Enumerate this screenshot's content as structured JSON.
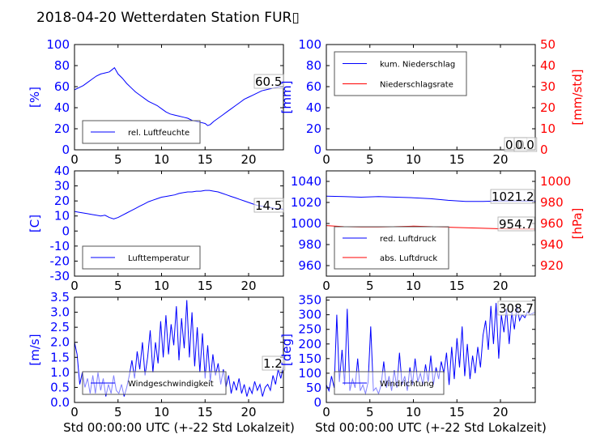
{
  "title": "2018-04-20 Wetterdaten Station FUR",
  "title_glyph": "▯",
  "colors": {
    "primary": "#0000ff",
    "secondary": "#ff0000",
    "axis": "#000000",
    "legend_border": "#555555"
  },
  "chart_data": [
    {
      "id": "humidity",
      "type": "line",
      "xlim": [
        0,
        24
      ],
      "xticks": [
        0,
        5,
        10,
        15,
        20
      ],
      "ylim": [
        0,
        100
      ],
      "yticks": [
        0,
        20,
        40,
        60,
        80,
        100
      ],
      "ylabel": "[%]",
      "xlabel": "",
      "current_value": "60.5",
      "legend": [
        {
          "name": "rel. Luftfeuchte",
          "color": "#0000ff"
        }
      ],
      "series": [
        {
          "name": "rel. Luftfeuchte",
          "color": "#0000ff",
          "axis": "left",
          "x": [
            0,
            0.5,
            1,
            1.5,
            2,
            2.5,
            3,
            3.5,
            4,
            4.3,
            4.6,
            5,
            5.5,
            6,
            6.5,
            7,
            7.5,
            8,
            8.5,
            9,
            9.5,
            10,
            10.5,
            11,
            11.5,
            12,
            12.5,
            13,
            13.5,
            14,
            14.5,
            15,
            15.3,
            15.6,
            16,
            16.5,
            17,
            17.5,
            18,
            18.5,
            19,
            19.5,
            20,
            20.5,
            21,
            21.5,
            22,
            22.5,
            23,
            23.5,
            24
          ],
          "y": [
            57,
            59,
            61,
            64,
            67,
            70,
            72,
            73,
            74,
            76,
            78,
            72,
            68,
            63,
            59,
            55,
            52,
            49,
            46,
            44,
            42,
            39,
            36,
            34,
            33,
            32,
            31,
            30,
            28,
            27,
            26,
            25,
            23,
            24,
            27,
            30,
            33,
            36,
            39,
            42,
            45,
            48,
            50,
            52,
            54,
            56,
            57,
            58,
            59,
            60,
            60.5
          ]
        }
      ]
    },
    {
      "id": "precipitation",
      "type": "line",
      "xlim": [
        0,
        24
      ],
      "xticks": [
        0,
        5,
        10,
        15,
        20
      ],
      "ylim": [
        0,
        100
      ],
      "yticks": [
        0,
        20,
        40,
        60,
        80,
        100
      ],
      "ylabel": "[mm]",
      "y2lim": [
        0,
        50
      ],
      "y2ticks": [
        0,
        10,
        20,
        30,
        40,
        50
      ],
      "y2label": "[mm/std]",
      "xlabel": "",
      "current_value": "0.0",
      "current_value_2": "0.0",
      "legend": [
        {
          "name": "kum. Niederschlag",
          "color": "#0000ff"
        },
        {
          "name": "Niederschlagsrate",
          "color": "#ff0000"
        }
      ],
      "series": [
        {
          "name": "kum. Niederschlag",
          "color": "#0000ff",
          "axis": "left",
          "x": [
            0,
            24
          ],
          "y": [
            0,
            0
          ]
        },
        {
          "name": "Niederschlagsrate",
          "color": "#ff0000",
          "axis": "right",
          "x": [
            0,
            24
          ],
          "y": [
            0,
            0
          ]
        }
      ]
    },
    {
      "id": "temperature",
      "type": "line",
      "xlim": [
        0,
        24
      ],
      "xticks": [
        0,
        5,
        10,
        15,
        20
      ],
      "ylim": [
        -30,
        40
      ],
      "yticks": [
        -30,
        -20,
        -10,
        0,
        10,
        20,
        30,
        40
      ],
      "ylabel": "[C]",
      "xlabel": "",
      "current_value": "14.5",
      "legend": [
        {
          "name": "Lufttemperatur",
          "color": "#0000ff"
        }
      ],
      "series": [
        {
          "name": "Lufttemperatur",
          "color": "#0000ff",
          "axis": "left",
          "x": [
            0,
            0.5,
            1,
            1.5,
            2,
            2.5,
            3,
            3.5,
            4,
            4.5,
            5,
            5.5,
            6,
            6.5,
            7,
            7.5,
            8,
            8.5,
            9,
            9.5,
            10,
            10.5,
            11,
            11.5,
            12,
            12.5,
            13,
            13.5,
            14,
            14.5,
            15,
            15.5,
            16,
            16.5,
            17,
            17.5,
            18,
            18.5,
            19,
            19.5,
            20,
            20.5,
            21,
            21.5,
            22,
            22.5,
            23,
            23.5,
            24
          ],
          "y": [
            13,
            12.5,
            12,
            11.5,
            11,
            10.5,
            10,
            10.5,
            9,
            8,
            9,
            10.5,
            12,
            13.5,
            15,
            16.5,
            18,
            19.5,
            20.5,
            21.5,
            22.5,
            23,
            23.5,
            24,
            25,
            25.5,
            26,
            26,
            26.5,
            26.5,
            27,
            27,
            26.5,
            26,
            25,
            24,
            23,
            22,
            21,
            20,
            19,
            18,
            17,
            16.5,
            16,
            15.5,
            15,
            14.8,
            14.5
          ]
        }
      ]
    },
    {
      "id": "pressure",
      "type": "line",
      "xlim": [
        0,
        24
      ],
      "xticks": [
        0,
        5,
        10,
        15,
        20
      ],
      "ylim": [
        950,
        1050
      ],
      "yticks": [
        960,
        980,
        1000,
        1020,
        1040
      ],
      "ylabel": "",
      "y2lim": [
        910,
        1010
      ],
      "y2ticks": [
        920,
        940,
        960,
        980,
        1000
      ],
      "y2label": "[hPa]",
      "xlabel": "",
      "current_value": "1021.2",
      "current_value_2": "954.7",
      "legend": [
        {
          "name": "red. Luftdruck",
          "color": "#0000ff"
        },
        {
          "name": "abs. Luftdruck",
          "color": "#ff0000"
        }
      ],
      "series": [
        {
          "name": "red. Luftdruck",
          "color": "#0000ff",
          "axis": "left",
          "x": [
            0,
            2,
            4,
            6,
            8,
            10,
            12,
            14,
            16,
            18,
            20,
            22,
            24
          ],
          "y": [
            1026,
            1025.5,
            1025,
            1025.5,
            1025,
            1024.5,
            1023.5,
            1022,
            1021,
            1021,
            1021.5,
            1021.5,
            1021.2
          ]
        },
        {
          "name": "abs. Luftdruck",
          "color": "#ff0000",
          "axis": "right",
          "x": [
            0,
            2,
            4,
            6,
            8,
            10,
            12,
            14,
            16,
            18,
            20,
            22,
            24
          ],
          "y": [
            958,
            957,
            956.5,
            956.5,
            957,
            957.5,
            957,
            956.5,
            956,
            955.5,
            955,
            954.8,
            954.7
          ]
        }
      ]
    },
    {
      "id": "windspeed",
      "type": "line",
      "xlim": [
        0,
        24
      ],
      "xticks": [
        0,
        5,
        10,
        15,
        20
      ],
      "ylim": [
        0,
        3.5
      ],
      "yticks": [
        0.0,
        0.5,
        1.0,
        1.5,
        2.0,
        2.5,
        3.0,
        3.5
      ],
      "ylabel": "[m/s]",
      "xlabel": "Std 00:00:00 UTC (+-22 Std Lokalzeit)",
      "current_value": "1.2",
      "legend": [
        {
          "name": "Windgeschwindigkeit",
          "color": "#0000ff"
        }
      ],
      "series": [
        {
          "name": "Windgeschwindigkeit",
          "color": "#0000ff",
          "axis": "left",
          "x": [
            0,
            0.3,
            0.6,
            0.9,
            1.2,
            1.5,
            1.8,
            2.1,
            2.4,
            2.7,
            3,
            3.3,
            3.6,
            3.9,
            4.2,
            4.5,
            4.8,
            5.1,
            5.4,
            5.7,
            6,
            6.3,
            6.6,
            6.9,
            7.2,
            7.5,
            7.8,
            8.1,
            8.4,
            8.7,
            9,
            9.3,
            9.6,
            9.9,
            10.2,
            10.5,
            10.8,
            11.1,
            11.4,
            11.7,
            12,
            12.3,
            12.6,
            12.9,
            13.2,
            13.5,
            13.8,
            14.1,
            14.4,
            14.7,
            15,
            15.3,
            15.6,
            15.9,
            16.2,
            16.5,
            16.8,
            17.1,
            17.4,
            17.7,
            18,
            18.3,
            18.6,
            18.9,
            19.2,
            19.5,
            19.8,
            20.1,
            20.4,
            20.7,
            21,
            21.3,
            21.6,
            21.9,
            22.2,
            22.5,
            22.8,
            23.1,
            23.4,
            23.7,
            24
          ],
          "y": [
            2.0,
            1.6,
            0.6,
            1.0,
            0.5,
            0.8,
            0.3,
            0.9,
            0.3,
            1.0,
            0.4,
            0.8,
            0.2,
            0.6,
            0.3,
            0.9,
            0.4,
            0.3,
            0.6,
            0.2,
            0.5,
            0.9,
            1.4,
            0.8,
            1.7,
            1.1,
            2.0,
            0.9,
            1.5,
            2.4,
            1.0,
            2.0,
            1.3,
            2.7,
            1.5,
            2.9,
            1.6,
            2.6,
            1.9,
            3.2,
            1.4,
            2.8,
            1.8,
            3.4,
            1.5,
            3.0,
            1.2,
            2.5,
            1.0,
            2.3,
            0.8,
            1.9,
            0.7,
            1.6,
            0.9,
            1.3,
            0.6,
            1.1,
            0.5,
            0.9,
            0.3,
            0.7,
            0.4,
            0.8,
            0.3,
            0.6,
            0.2,
            0.5,
            0.3,
            0.7,
            0.4,
            0.6,
            0.2,
            0.5,
            0.6,
            0.4,
            0.9,
            0.6,
            1.1,
            0.8,
            1.2
          ]
        }
      ]
    },
    {
      "id": "winddirection",
      "type": "line",
      "xlim": [
        0,
        24
      ],
      "xticks": [
        0,
        5,
        10,
        15,
        20
      ],
      "ylim": [
        0,
        360
      ],
      "yticks": [
        0,
        50,
        100,
        150,
        200,
        250,
        300,
        350
      ],
      "ylabel": "[deg]",
      "xlabel": "Std 00:00:00 UTC (+-22 Std Lokalzeit)",
      "current_value": "308.7",
      "legend": [
        {
          "name": "Windrichtung",
          "color": "#0000ff"
        }
      ],
      "series": [
        {
          "name": "Windrichtung",
          "color": "#0000ff",
          "axis": "left",
          "x": [
            0,
            0.3,
            0.6,
            0.9,
            1.2,
            1.5,
            1.8,
            2.1,
            2.4,
            2.7,
            3,
            3.3,
            3.6,
            3.9,
            4.2,
            4.5,
            4.8,
            5.1,
            5.4,
            5.7,
            6,
            6.3,
            6.6,
            6.9,
            7.2,
            7.5,
            7.8,
            8.1,
            8.4,
            8.7,
            9,
            9.3,
            9.6,
            9.9,
            10.2,
            10.5,
            10.8,
            11.1,
            11.4,
            11.7,
            12,
            12.3,
            12.6,
            12.9,
            13.2,
            13.5,
            13.8,
            14.1,
            14.4,
            14.7,
            15,
            15.3,
            15.6,
            15.9,
            16.2,
            16.5,
            16.8,
            17.1,
            17.4,
            17.7,
            18,
            18.3,
            18.6,
            18.9,
            19.2,
            19.5,
            19.8,
            20.1,
            20.4,
            20.7,
            21,
            21.3,
            21.6,
            21.9,
            22.2,
            22.5,
            22.8,
            23.1,
            23.4,
            23.7,
            24
          ],
          "y": [
            60,
            40,
            90,
            50,
            300,
            70,
            180,
            60,
            320,
            40,
            80,
            50,
            150,
            40,
            60,
            30,
            70,
            260,
            40,
            50,
            30,
            60,
            140,
            50,
            90,
            40,
            110,
            50,
            170,
            60,
            90,
            40,
            120,
            60,
            150,
            70,
            100,
            60,
            130,
            70,
            160,
            60,
            120,
            80,
            140,
            100,
            170,
            60,
            190,
            80,
            220,
            120,
            260,
            90,
            200,
            80,
            160,
            100,
            190,
            120,
            230,
            280,
            180,
            330,
            200,
            340,
            150,
            300,
            240,
            320,
            200,
            310,
            250,
            330,
            280,
            300,
            290,
            310,
            300,
            305,
            308.7
          ]
        }
      ]
    }
  ]
}
